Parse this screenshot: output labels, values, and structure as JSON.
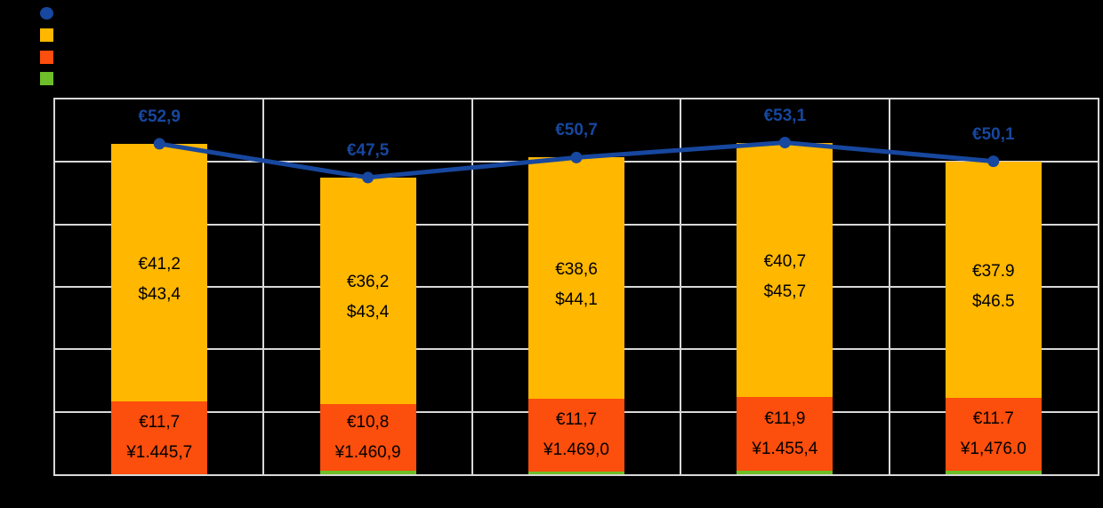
{
  "background": "#000000",
  "legend": {
    "position": "top-left",
    "items": [
      {
        "name": "total-line",
        "marker": "circle",
        "color": "#17479E",
        "label": ""
      },
      {
        "name": "yellow-segment",
        "marker": "square",
        "color": "#FFB700",
        "label": ""
      },
      {
        "name": "red-segment",
        "marker": "square",
        "color": "#FC4E0C",
        "label": ""
      },
      {
        "name": "green-segment",
        "marker": "square",
        "color": "#6DBE28",
        "label": ""
      }
    ]
  },
  "chart_data": {
    "type": "combo: stacked bar + line",
    "title": "",
    "xlabel": "",
    "ylabel": "",
    "categories": [
      "",
      "",
      "",
      "",
      ""
    ],
    "ylim": [
      0,
      60
    ],
    "grid_step": 10,
    "grid": true,
    "legend_position": "top-left",
    "stack_order_bottom_to_top": [
      "green-segment",
      "red-segment",
      "yellow-segment"
    ],
    "series": [
      {
        "name": "yellow-segment",
        "type": "bar",
        "color": "#FFB700",
        "values": [
          41.2,
          36.2,
          38.6,
          40.7,
          37.9
        ],
        "labels": [
          [
            "€41,2",
            "$43,4"
          ],
          [
            "€36,2",
            "$43,4"
          ],
          [
            "€38,6",
            "$44,1"
          ],
          [
            "€40,7",
            "$45,7"
          ],
          [
            "€37.9",
            "$46.5"
          ]
        ]
      },
      {
        "name": "red-segment",
        "type": "bar",
        "color": "#FC4E0C",
        "values": [
          11.7,
          10.8,
          11.7,
          11.9,
          11.7
        ],
        "labels": [
          [
            "€11,7",
            "¥1.445,7"
          ],
          [
            "€10,8",
            "¥1.460,9"
          ],
          [
            "€11,7",
            "¥1.469,0"
          ],
          [
            "€11,9",
            "¥1.455,4"
          ],
          [
            "€11.7",
            "¥1,476.0"
          ]
        ]
      },
      {
        "name": "green-segment",
        "type": "bar",
        "color": "#6DBE28",
        "values": [
          0,
          0.5,
          0.4,
          0.5,
          0.5
        ],
        "labels": []
      },
      {
        "name": "total-line",
        "type": "line",
        "color": "#17479E",
        "values": [
          52.9,
          47.5,
          50.7,
          53.1,
          50.1
        ],
        "labels": [
          "€52,9",
          "€47,5",
          "€50,7",
          "€53,1",
          "€50,1"
        ]
      }
    ],
    "colors": {
      "line": "#17479E",
      "line_label": "#17479E",
      "yellow": "#FFB700",
      "red": "#FC4E0C",
      "green": "#6DBE28",
      "gridline": "#D8D8D8",
      "bar_label": "#000000"
    }
  }
}
